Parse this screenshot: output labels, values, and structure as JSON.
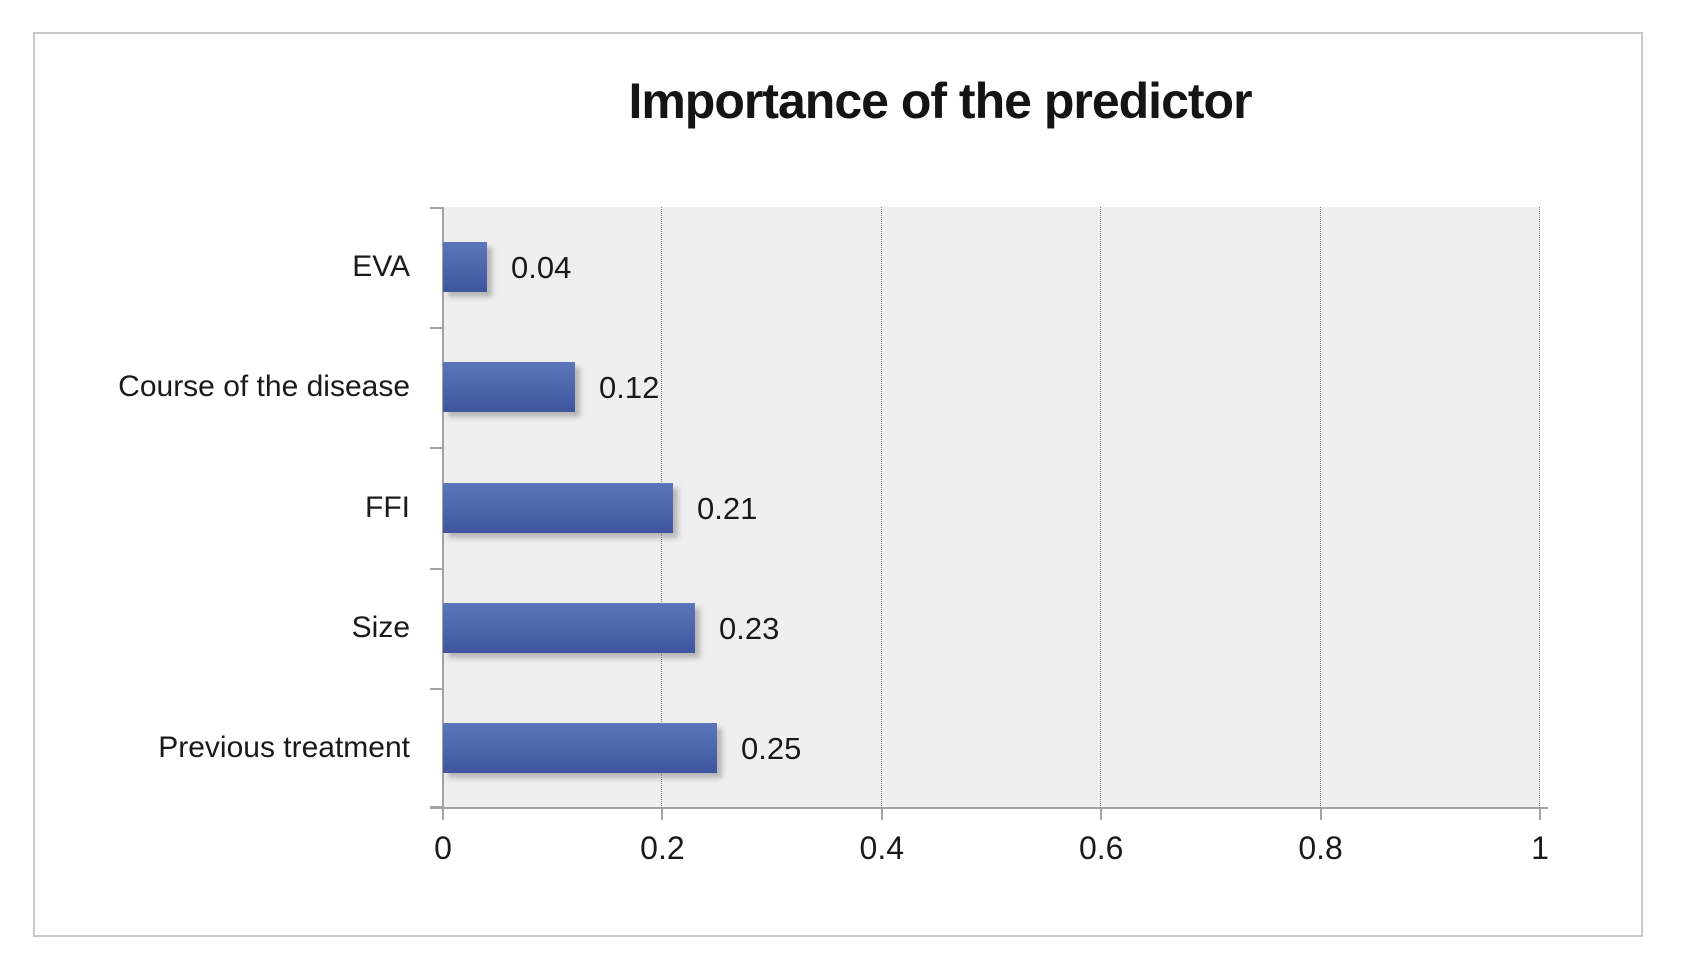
{
  "frame": {
    "border_color": "#c9c9c9",
    "background": "#ffffff"
  },
  "chart_data": {
    "type": "bar",
    "orientation": "horizontal",
    "title": "Importance of the predictor",
    "categories": [
      "EVA",
      "Course of the disease",
      "FFI",
      "Size",
      "Previous treatment"
    ],
    "values": [
      0.04,
      0.12,
      0.21,
      0.23,
      0.25
    ],
    "value_labels": [
      "0.04",
      "0.12",
      "0.21",
      "0.23",
      "0.25"
    ],
    "xlabel": "",
    "ylabel": "",
    "xlim": [
      0,
      1
    ],
    "xticks": [
      0,
      0.2,
      0.4,
      0.6,
      0.8,
      1
    ],
    "xtick_labels": [
      "0",
      "0.2",
      "0.4",
      "0.6",
      "0.8",
      "1"
    ],
    "grid": "vertical-dotted",
    "legend": "none",
    "colors": {
      "bar_top": "#5c76bb",
      "bar_bottom": "#3f569f",
      "plot_background": "#efefef",
      "axis": "#a3a3a3",
      "gridline": "#7f7f7f",
      "text": "#1a1a1a"
    }
  }
}
